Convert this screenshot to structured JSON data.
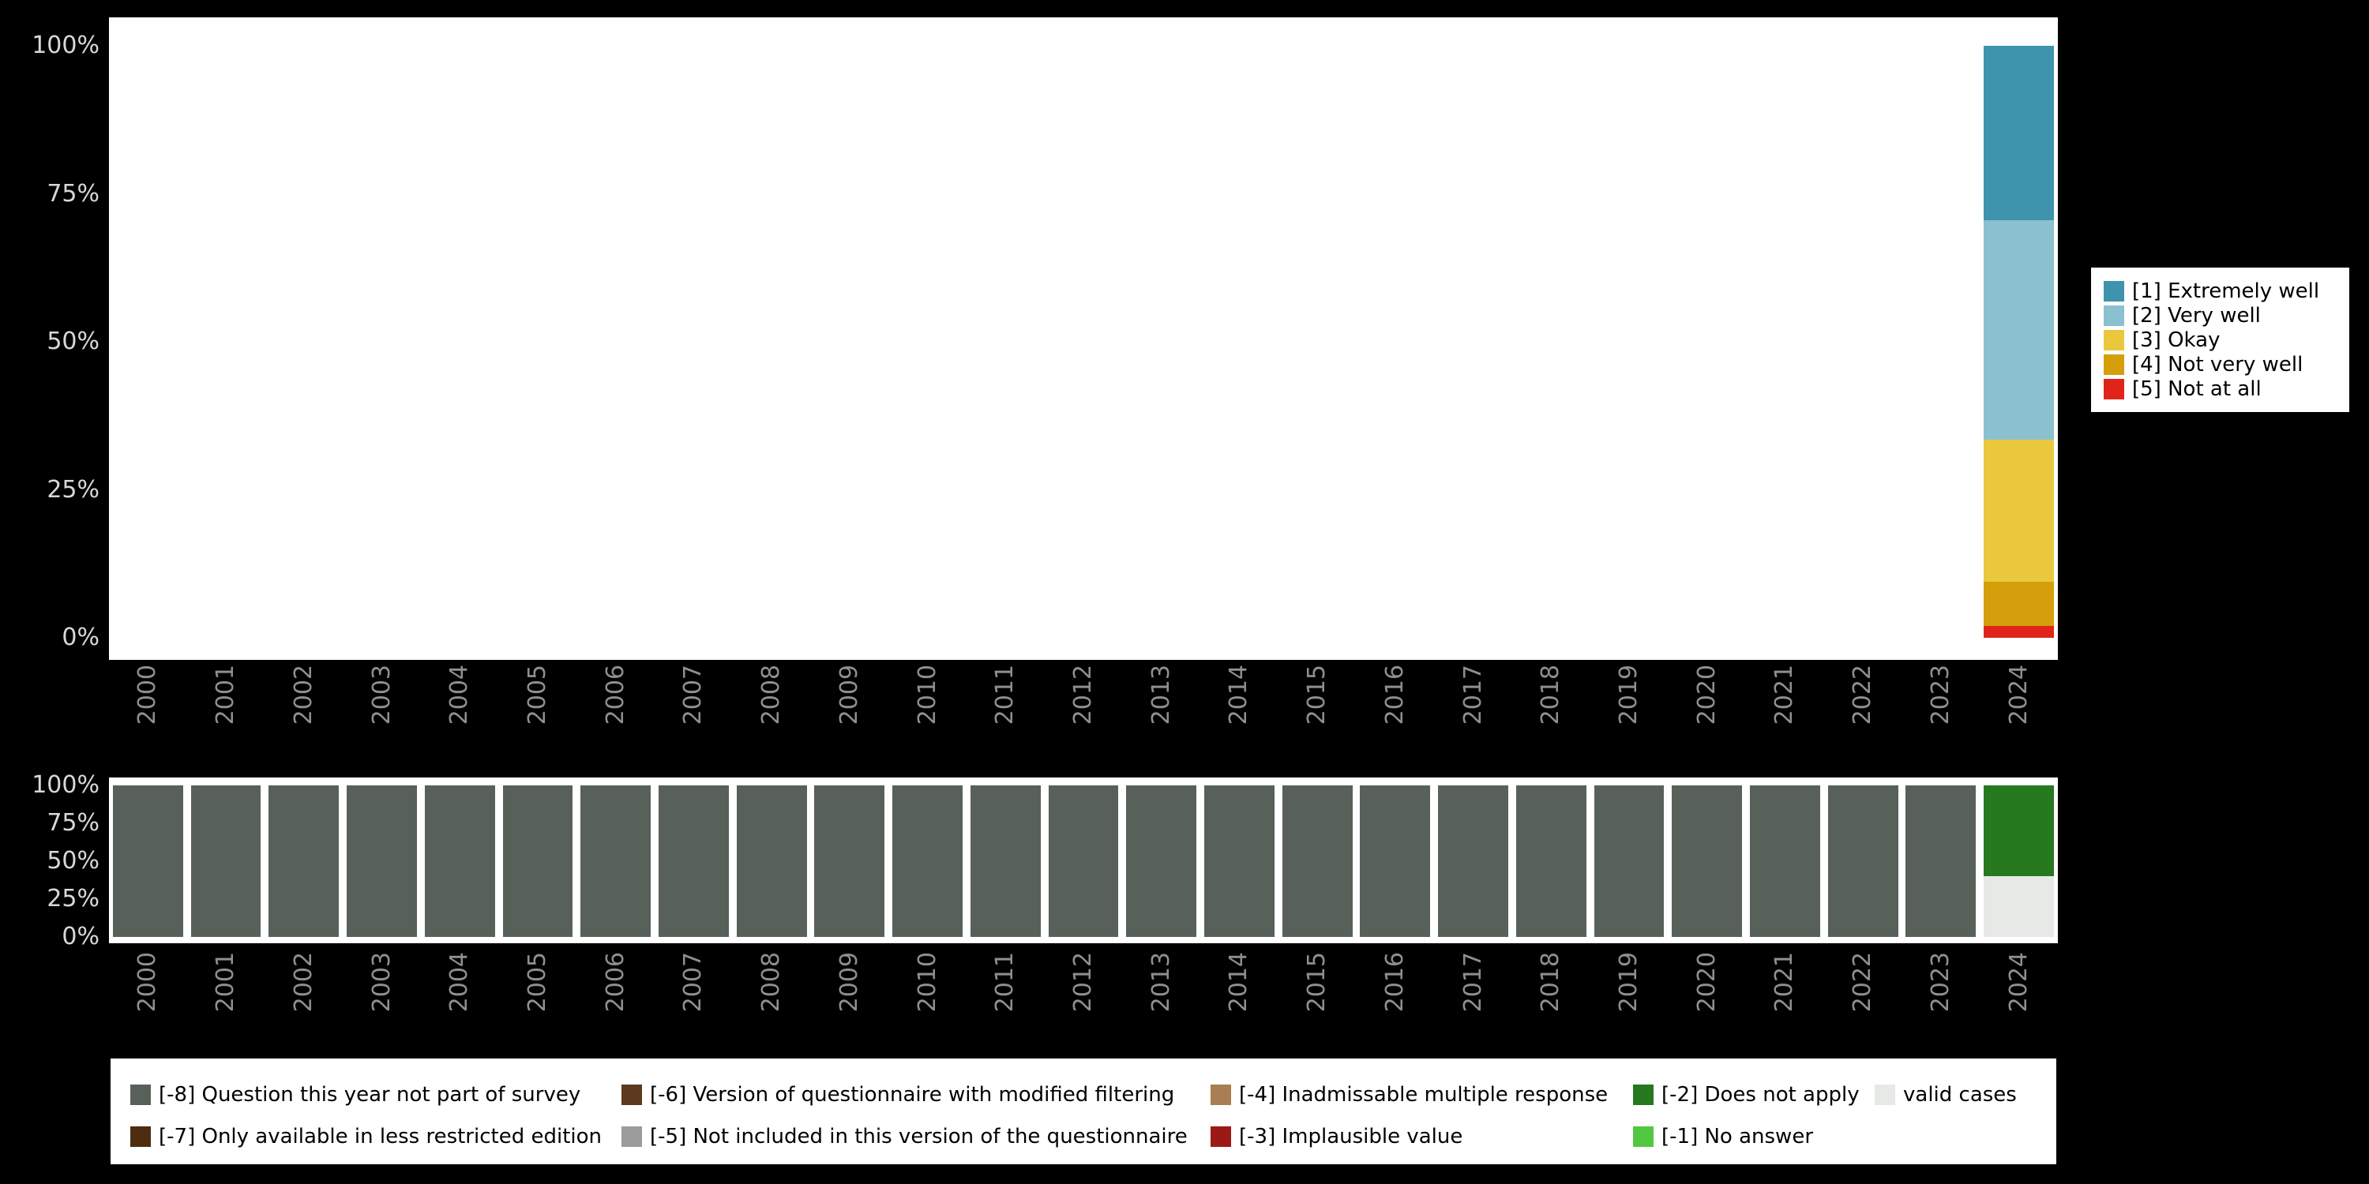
{
  "colors": {
    "background": "#000000",
    "panel": "#ffffff",
    "axis_text": "#d8d8d8",
    "year_text": "#8f8f8f",
    "legend_text": "#000000"
  },
  "chart_data": [
    {
      "name": "values_distribution",
      "type": "bar",
      "stacked": true,
      "unit": "percent",
      "title": "",
      "xlabel": "",
      "ylabel": "",
      "ylim": [
        0,
        100
      ],
      "yticks": [
        "0%",
        "25%",
        "50%",
        "75%",
        "100%"
      ],
      "legend_position": "right",
      "categories": [
        "2000",
        "2001",
        "2002",
        "2003",
        "2004",
        "2005",
        "2006",
        "2007",
        "2008",
        "2009",
        "2010",
        "2011",
        "2012",
        "2013",
        "2014",
        "2015",
        "2016",
        "2017",
        "2018",
        "2019",
        "2020",
        "2021",
        "2022",
        "2023",
        "2024"
      ],
      "series": [
        {
          "name": "[1] Extremely well",
          "color": "#3e93ad",
          "values": [
            0,
            0,
            0,
            0,
            0,
            0,
            0,
            0,
            0,
            0,
            0,
            0,
            0,
            0,
            0,
            0,
            0,
            0,
            0,
            0,
            0,
            0,
            0,
            0,
            29.5
          ]
        },
        {
          "name": "[2] Very well",
          "color": "#8bc0d1",
          "values": [
            0,
            0,
            0,
            0,
            0,
            0,
            0,
            0,
            0,
            0,
            0,
            0,
            0,
            0,
            0,
            0,
            0,
            0,
            0,
            0,
            0,
            0,
            0,
            0,
            37
          ]
        },
        {
          "name": "[3] Okay",
          "color": "#eac83e",
          "values": [
            0,
            0,
            0,
            0,
            0,
            0,
            0,
            0,
            0,
            0,
            0,
            0,
            0,
            0,
            0,
            0,
            0,
            0,
            0,
            0,
            0,
            0,
            0,
            0,
            24
          ]
        },
        {
          "name": "[4] Not very well",
          "color": "#d49f0a",
          "values": [
            0,
            0,
            0,
            0,
            0,
            0,
            0,
            0,
            0,
            0,
            0,
            0,
            0,
            0,
            0,
            0,
            0,
            0,
            0,
            0,
            0,
            0,
            0,
            0,
            7.5
          ]
        },
        {
          "name": "[5] Not at all",
          "color": "#e1241a",
          "values": [
            0,
            0,
            0,
            0,
            0,
            0,
            0,
            0,
            0,
            0,
            0,
            0,
            0,
            0,
            0,
            0,
            0,
            0,
            0,
            0,
            0,
            0,
            0,
            0,
            2
          ]
        }
      ]
    },
    {
      "name": "missing_values",
      "type": "bar",
      "stacked": true,
      "unit": "percent",
      "title": "",
      "xlabel": "",
      "ylabel": "",
      "ylim": [
        0,
        100
      ],
      "yticks": [
        "0%",
        "25%",
        "50%",
        "75%",
        "100%"
      ],
      "legend_position": "bottom",
      "categories": [
        "2000",
        "2001",
        "2002",
        "2003",
        "2004",
        "2005",
        "2006",
        "2007",
        "2008",
        "2009",
        "2010",
        "2011",
        "2012",
        "2013",
        "2014",
        "2015",
        "2016",
        "2017",
        "2018",
        "2019",
        "2020",
        "2021",
        "2022",
        "2023",
        "2024"
      ],
      "series": [
        {
          "name": "[-8] Question this year not part of survey",
          "color": "#58605a",
          "values": [
            100,
            100,
            100,
            100,
            100,
            100,
            100,
            100,
            100,
            100,
            100,
            100,
            100,
            100,
            100,
            100,
            100,
            100,
            100,
            100,
            100,
            100,
            100,
            100,
            0
          ]
        },
        {
          "name": "[-7] Only available in less restricted edition",
          "color": "#4e2c10",
          "values": [
            0,
            0,
            0,
            0,
            0,
            0,
            0,
            0,
            0,
            0,
            0,
            0,
            0,
            0,
            0,
            0,
            0,
            0,
            0,
            0,
            0,
            0,
            0,
            0,
            0
          ]
        },
        {
          "name": "[-6] Version of questionnaire with modified filtering",
          "color": "#5c3a1e",
          "values": [
            0,
            0,
            0,
            0,
            0,
            0,
            0,
            0,
            0,
            0,
            0,
            0,
            0,
            0,
            0,
            0,
            0,
            0,
            0,
            0,
            0,
            0,
            0,
            0,
            0
          ]
        },
        {
          "name": "[-5] Not included in this version of the questionnaire",
          "color": "#9b9b9b",
          "values": [
            0,
            0,
            0,
            0,
            0,
            0,
            0,
            0,
            0,
            0,
            0,
            0,
            0,
            0,
            0,
            0,
            0,
            0,
            0,
            0,
            0,
            0,
            0,
            0,
            0
          ]
        },
        {
          "name": "[-4] Inadmissable multiple response",
          "color": "#a87e52",
          "values": [
            0,
            0,
            0,
            0,
            0,
            0,
            0,
            0,
            0,
            0,
            0,
            0,
            0,
            0,
            0,
            0,
            0,
            0,
            0,
            0,
            0,
            0,
            0,
            0,
            0
          ]
        },
        {
          "name": "[-3] Implausible value",
          "color": "#9c1a15",
          "values": [
            0,
            0,
            0,
            0,
            0,
            0,
            0,
            0,
            0,
            0,
            0,
            0,
            0,
            0,
            0,
            0,
            0,
            0,
            0,
            0,
            0,
            0,
            0,
            0,
            0
          ]
        },
        {
          "name": "[-2] Does not apply",
          "color": "#26791e",
          "values": [
            0,
            0,
            0,
            0,
            0,
            0,
            0,
            0,
            0,
            0,
            0,
            0,
            0,
            0,
            0,
            0,
            0,
            0,
            0,
            0,
            0,
            0,
            0,
            0,
            60
          ]
        },
        {
          "name": "[-1] No answer",
          "color": "#52c842",
          "values": [
            0,
            0,
            0,
            0,
            0,
            0,
            0,
            0,
            0,
            0,
            0,
            0,
            0,
            0,
            0,
            0,
            0,
            0,
            0,
            0,
            0,
            0,
            0,
            0,
            0
          ]
        },
        {
          "name": "valid cases",
          "color": "#e7e9e7",
          "values": [
            0,
            0,
            0,
            0,
            0,
            0,
            0,
            0,
            0,
            0,
            0,
            0,
            0,
            0,
            0,
            0,
            0,
            0,
            0,
            0,
            0,
            0,
            0,
            0,
            40
          ]
        }
      ]
    }
  ]
}
